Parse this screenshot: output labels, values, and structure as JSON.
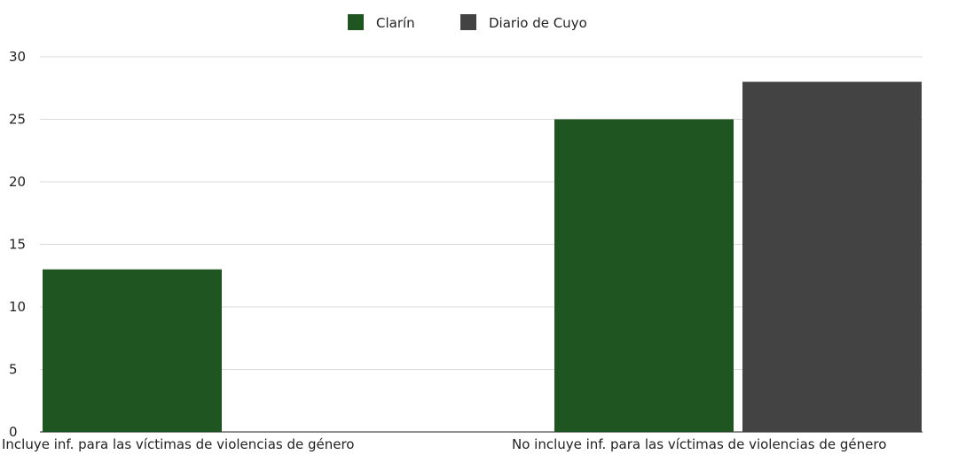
{
  "chart_data": {
    "type": "bar",
    "title": "",
    "xlabel": "",
    "ylabel": "",
    "categories": [
      "Incluye inf. para las víctimas de violencias de género",
      "No incluye inf. para las víctimas de violencias de género"
    ],
    "series": [
      {
        "name": "Clarín",
        "color": "#1e5520",
        "values": [
          13,
          25
        ]
      },
      {
        "name": "Diario de Cuyo",
        "color": "#434343",
        "values": [
          0,
          28
        ]
      }
    ],
    "ylim": [
      0,
      30
    ],
    "yticks": [
      0,
      5,
      10,
      15,
      20,
      25,
      30
    ],
    "grid": true,
    "legend_position": "top-center"
  }
}
